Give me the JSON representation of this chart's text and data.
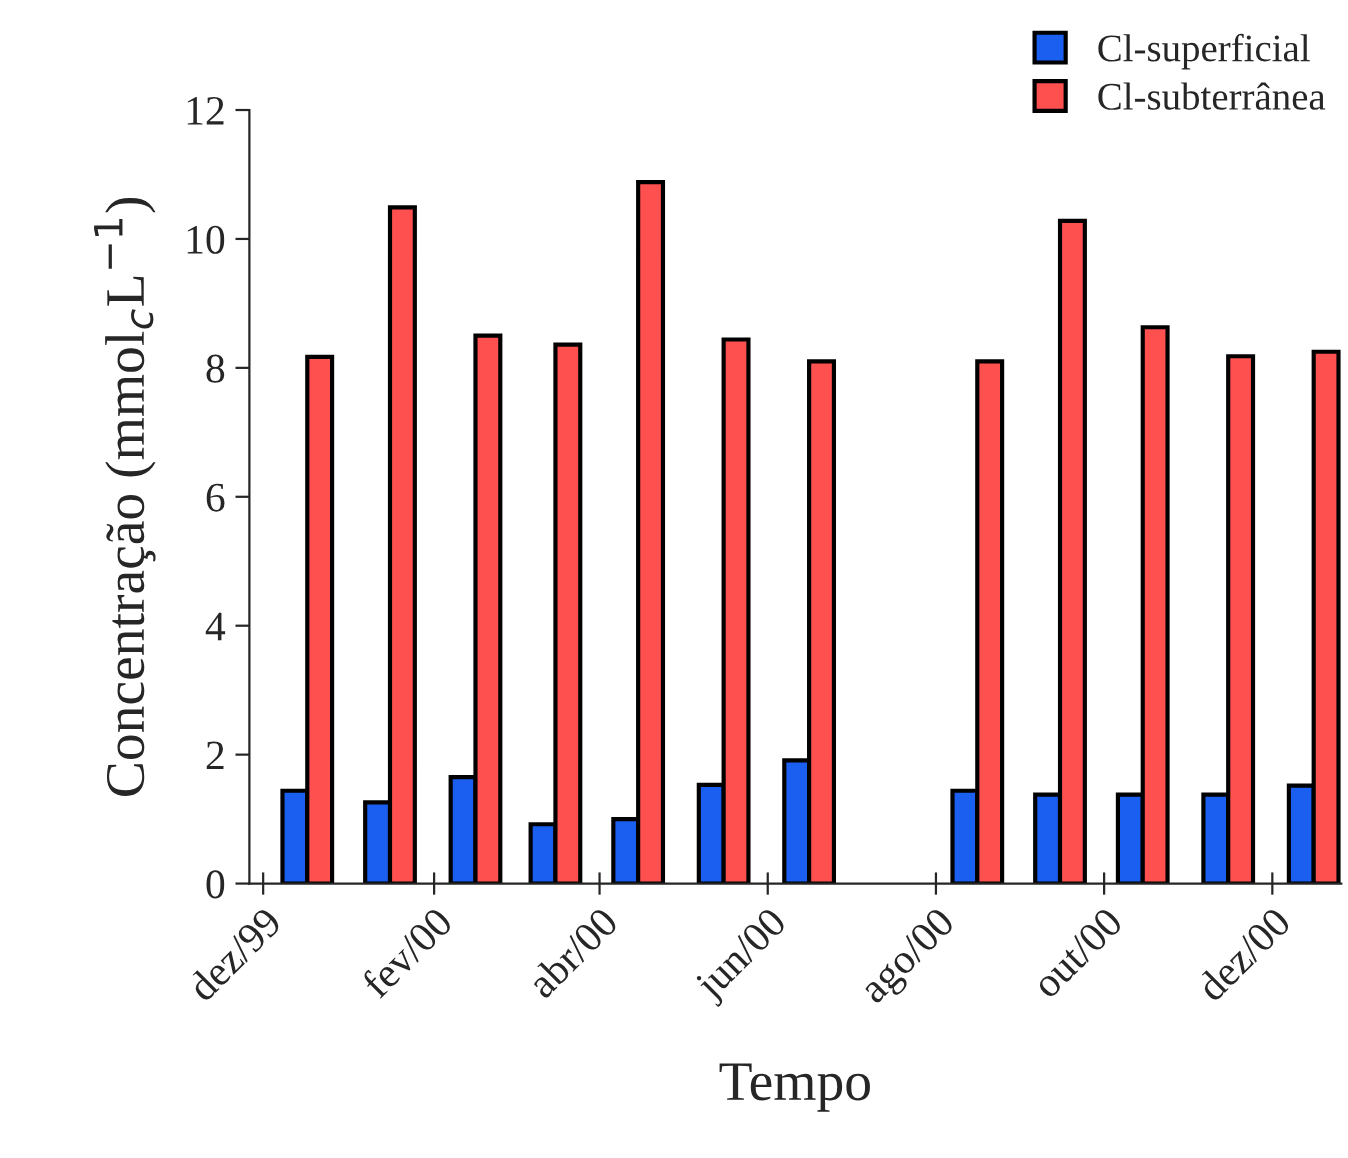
{
  "chart_data": {
    "type": "bar",
    "xlabel": "Tempo",
    "ylabel": "Concentração (mmol$_{c}$L$^{−1}$)",
    "x": [
      "1999-12-17",
      "2000-01-16",
      "2000-02-16",
      "2000-03-16",
      "2000-04-15",
      "2000-05-16",
      "2000-06-16",
      "2000-08-16",
      "2000-09-15",
      "2000-10-15",
      "2000-11-15",
      "2000-12-16"
    ],
    "series": [
      {
        "name": "Cl-superficial",
        "color": "#1a5ff0",
        "values": [
          1.44,
          1.26,
          1.65,
          0.92,
          1.0,
          1.53,
          1.91,
          1.44,
          1.38,
          1.38,
          1.38,
          1.52
        ]
      },
      {
        "name": "Cl-subterrânea",
        "color": "#ff5050",
        "values": [
          8.17,
          10.49,
          8.5,
          8.36,
          10.88,
          8.44,
          8.1,
          8.1,
          10.28,
          8.63,
          8.18,
          8.25
        ]
      }
    ],
    "xlim": [
      "1999-11-26",
      "2000-12-26"
    ],
    "xticks": [
      {
        "value": "1999-12-01",
        "label": "dez/99"
      },
      {
        "value": "2000-02-01",
        "label": "fev/00"
      },
      {
        "value": "2000-04-01",
        "label": "abr/00"
      },
      {
        "value": "2000-06-01",
        "label": "jun/00"
      },
      {
        "value": "2000-08-01",
        "label": "ago/00"
      },
      {
        "value": "2000-10-01",
        "label": "out/00"
      },
      {
        "value": "2000-12-01",
        "label": "dez/00"
      }
    ],
    "ylim": [
      0,
      12
    ],
    "yticks": [
      0,
      2,
      4,
      6,
      8,
      10,
      12
    ],
    "grid": false,
    "legend": "top right"
  }
}
